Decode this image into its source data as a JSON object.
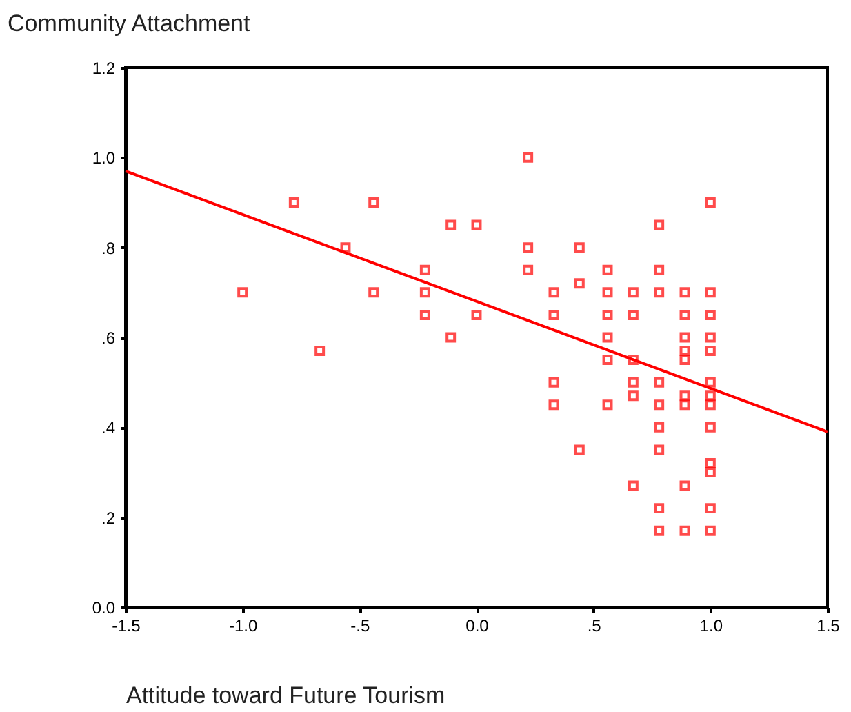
{
  "chart_data": {
    "type": "scatter",
    "xlabel": "Attitude toward Future Tourism",
    "ylabel": "Community Attachment",
    "xlim": [
      -1.5,
      1.5
    ],
    "ylim": [
      0,
      1.2
    ],
    "xticks": [
      {
        "value": -1.5,
        "label": "-1.5"
      },
      {
        "value": -1,
        "label": "-1.0"
      },
      {
        "value": -0.5,
        "label": "-.5"
      },
      {
        "value": 0,
        "label": "0.0"
      },
      {
        "value": 0.5,
        "label": ".5"
      },
      {
        "value": 1,
        "label": "1.0"
      },
      {
        "value": 1.5,
        "label": "1.5"
      }
    ],
    "yticks": [
      {
        "value": 0,
        "label": "0.0"
      },
      {
        "value": 0.2,
        "label": ".2"
      },
      {
        "value": 0.4,
        "label": ".4"
      },
      {
        "value": 0.6,
        "label": ".6"
      },
      {
        "value": 0.8,
        "label": ".8"
      },
      {
        "value": 1,
        "label": "1.0"
      },
      {
        "value": 1.2,
        "label": "1.2"
      }
    ],
    "grid": false,
    "series": [
      {
        "marker": "square",
        "color": "#ff0000",
        "x": [
          -1,
          -0.78,
          -0.67,
          -0.56,
          -0.44,
          -0.44,
          -0.22,
          -0.22,
          -0.22,
          -0.11,
          -0.11,
          0,
          0,
          0.22,
          0.22,
          0.22,
          0.33,
          0.33,
          0.33,
          0.33,
          0.44,
          0.44,
          0.44,
          0.56,
          0.56,
          0.56,
          0.56,
          0.56,
          0.56,
          0.67,
          0.67,
          0.67,
          0.67,
          0.67,
          0.67,
          0.78,
          0.78,
          0.78,
          0.78,
          0.78,
          0.78,
          0.78,
          0.78,
          0.78,
          0.89,
          0.89,
          0.89,
          0.89,
          0.89,
          0.89,
          0.89,
          0.89,
          0.89,
          1,
          1,
          1,
          1,
          1,
          1,
          1,
          1,
          1,
          1,
          1,
          1,
          1
        ],
        "values": [
          0.7,
          0.9,
          0.57,
          0.8,
          0.9,
          0.7,
          0.75,
          0.7,
          0.65,
          0.85,
          0.6,
          0.85,
          0.65,
          1,
          0.8,
          0.75,
          0.7,
          0.65,
          0.5,
          0.45,
          0.8,
          0.72,
          0.35,
          0.75,
          0.7,
          0.65,
          0.6,
          0.55,
          0.45,
          0.7,
          0.65,
          0.55,
          0.5,
          0.47,
          0.27,
          0.85,
          0.75,
          0.7,
          0.5,
          0.45,
          0.4,
          0.35,
          0.22,
          0.17,
          0.7,
          0.65,
          0.6,
          0.57,
          0.55,
          0.47,
          0.45,
          0.27,
          0.17,
          0.9,
          0.7,
          0.65,
          0.6,
          0.57,
          0.5,
          0.47,
          0.45,
          0.4,
          0.32,
          0.3,
          0.22,
          0.17
        ]
      },
      {
        "type": "line",
        "color": "#ff0000",
        "x": [
          -1.5,
          1.5
        ],
        "values": [
          0.97,
          0.39
        ],
        "line_style": "solid"
      }
    ]
  }
}
